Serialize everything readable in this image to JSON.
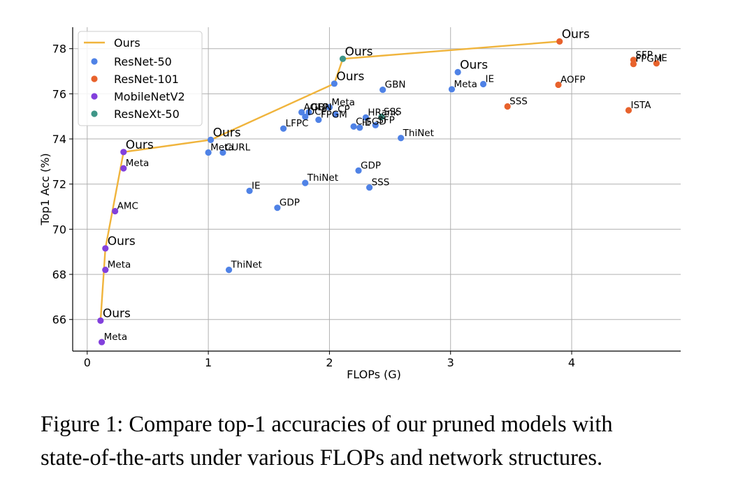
{
  "chart_data": {
    "type": "scatter",
    "xlabel": "FLOPs (G)",
    "ylabel": "Top1 Acc (%)",
    "xlim": [
      -0.12,
      4.9
    ],
    "ylim": [
      64.6,
      78.95
    ],
    "xticks": [
      0,
      1,
      2,
      3,
      4
    ],
    "yticks": [
      66,
      68,
      70,
      72,
      74,
      76,
      78
    ],
    "grid": true,
    "legend_position": "top-left",
    "line": {
      "name": "Ours",
      "color": "#f0b43c",
      "x": [
        0.11,
        0.15,
        0.3,
        1.02,
        2.04,
        2.11,
        3.9
      ],
      "y": [
        65.95,
        69.15,
        73.42,
        73.96,
        76.45,
        77.55,
        78.32
      ]
    },
    "series": [
      {
        "name": "ResNet-50",
        "color": "#4f82e6",
        "points": [
          {
            "x": 1.02,
            "y": 73.96,
            "label": "Ours"
          },
          {
            "x": 2.04,
            "y": 76.45,
            "label": "Ours"
          },
          {
            "x": 3.06,
            "y": 76.96,
            "label": "Ours"
          },
          {
            "x": 1.0,
            "y": 73.4,
            "label": "Meta"
          },
          {
            "x": 1.12,
            "y": 73.4,
            "label": "CURL"
          },
          {
            "x": 1.34,
            "y": 71.7,
            "label": "IE"
          },
          {
            "x": 1.57,
            "y": 70.95,
            "label": "GDP"
          },
          {
            "x": 1.17,
            "y": 68.2,
            "label": "ThiNet"
          },
          {
            "x": 1.8,
            "y": 72.05,
            "label": "ThiNet"
          },
          {
            "x": 1.62,
            "y": 74.46,
            "label": "LFPC"
          },
          {
            "x": 1.77,
            "y": 75.18,
            "label": "AOFP"
          },
          {
            "x": 1.83,
            "y": 75.18,
            "label": "GBN"
          },
          {
            "x": 1.8,
            "y": 74.98,
            "label": "DCP"
          },
          {
            "x": 1.91,
            "y": 74.85,
            "label": "FPGM"
          },
          {
            "x": 2.0,
            "y": 75.4,
            "label": "Meta"
          },
          {
            "x": 2.05,
            "y": 75.08,
            "label": "CP"
          },
          {
            "x": 2.2,
            "y": 74.55,
            "label": "C-SGD"
          },
          {
            "x": 2.3,
            "y": 74.95,
            "label": "HRank"
          },
          {
            "x": 2.25,
            "y": 74.5,
            "label": "IE"
          },
          {
            "x": 2.38,
            "y": 74.61,
            "label": "SFP"
          },
          {
            "x": 2.24,
            "y": 72.6,
            "label": "GDP"
          },
          {
            "x": 2.33,
            "y": 71.85,
            "label": "SSS"
          },
          {
            "x": 2.59,
            "y": 74.04,
            "label": "ThiNet"
          },
          {
            "x": 2.44,
            "y": 76.18,
            "label": "GBN"
          },
          {
            "x": 3.01,
            "y": 76.2,
            "label": "Meta"
          },
          {
            "x": 3.27,
            "y": 76.43,
            "label": "IE"
          }
        ]
      },
      {
        "name": "ResNet-101",
        "color": "#e8622c",
        "points": [
          {
            "x": 3.9,
            "y": 78.32,
            "label": "Ours"
          },
          {
            "x": 3.89,
            "y": 76.4,
            "label": "AOFP"
          },
          {
            "x": 3.47,
            "y": 75.44,
            "label": "SSS"
          },
          {
            "x": 4.47,
            "y": 75.27,
            "label": "ISTA"
          },
          {
            "x": 4.51,
            "y": 77.5,
            "label": "SFP"
          },
          {
            "x": 4.51,
            "y": 77.32,
            "label": "FPGM"
          },
          {
            "x": 4.7,
            "y": 77.35,
            "label": "IE"
          }
        ]
      },
      {
        "name": "MobileNetV2",
        "color": "#8240dc",
        "points": [
          {
            "x": 0.11,
            "y": 65.95,
            "label": "Ours"
          },
          {
            "x": 0.12,
            "y": 65.0,
            "label": "Meta"
          },
          {
            "x": 0.15,
            "y": 69.15,
            "label": "Ours"
          },
          {
            "x": 0.15,
            "y": 68.2,
            "label": "Meta"
          },
          {
            "x": 0.3,
            "y": 73.42,
            "label": "Ours"
          },
          {
            "x": 0.3,
            "y": 72.7,
            "label": "Meta"
          },
          {
            "x": 0.23,
            "y": 70.8,
            "label": "AMC"
          }
        ]
      },
      {
        "name": "ResNeXt-50",
        "color": "#3f9688",
        "points": [
          {
            "x": 2.11,
            "y": 77.55,
            "label": "Ours"
          },
          {
            "x": 2.43,
            "y": 74.98,
            "label": "SSS"
          }
        ]
      }
    ]
  },
  "caption": {
    "line1": "Figure 1: Compare top-1 accuracies of our pruned models with",
    "line2": "state-of-the-arts under various FLOPs and network structures."
  }
}
